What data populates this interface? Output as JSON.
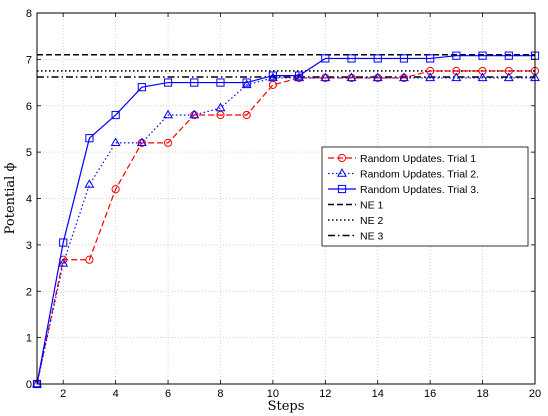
{
  "chart_data": {
    "type": "line",
    "xlabel": "Steps",
    "ylabel": "Potential ϕ",
    "xlim": [
      1,
      20
    ],
    "ylim": [
      0,
      8
    ],
    "xticks": [
      2,
      4,
      6,
      8,
      10,
      12,
      14,
      16,
      18,
      20
    ],
    "yticks": [
      0,
      1,
      2,
      3,
      4,
      5,
      6,
      7,
      8
    ],
    "grid": true,
    "legend_position": "center-right",
    "series": [
      {
        "name": "Random Updates. Trial 1",
        "color": "#ff0000",
        "line": "dashed",
        "marker": "circle",
        "x": [
          1,
          2,
          3,
          4,
          5,
          6,
          7,
          8,
          9,
          10,
          11,
          12,
          13,
          14,
          15,
          16,
          17,
          18,
          19,
          20
        ],
        "y": [
          0,
          2.68,
          2.68,
          4.2,
          5.2,
          5.2,
          5.8,
          5.8,
          5.8,
          6.45,
          6.6,
          6.6,
          6.6,
          6.6,
          6.6,
          6.75,
          6.75,
          6.75,
          6.75,
          6.75
        ]
      },
      {
        "name": "Random Updates. Trial 2.",
        "color": "#0000ff",
        "line": "dotted",
        "marker": "triangle",
        "x": [
          1,
          2,
          3,
          4,
          5,
          6,
          7,
          8,
          9,
          10,
          11,
          12,
          13,
          14,
          15,
          16,
          17,
          18,
          19,
          20
        ],
        "y": [
          0,
          2.6,
          4.3,
          5.2,
          5.2,
          5.8,
          5.8,
          5.95,
          6.45,
          6.6,
          6.6,
          6.6,
          6.6,
          6.6,
          6.6,
          6.6,
          6.6,
          6.6,
          6.6,
          6.6
        ]
      },
      {
        "name": "Random Updates. Trial 3.",
        "color": "#0000ff",
        "line": "solid",
        "marker": "square",
        "x": [
          1,
          2,
          3,
          4,
          5,
          6,
          7,
          8,
          9,
          10,
          11,
          12,
          13,
          14,
          15,
          16,
          17,
          18,
          19,
          20
        ],
        "y": [
          0,
          3.05,
          5.3,
          5.8,
          6.4,
          6.5,
          6.5,
          6.5,
          6.5,
          6.65,
          6.65,
          7.02,
          7.02,
          7.02,
          7.02,
          7.02,
          7.08,
          7.08,
          7.08,
          7.08
        ]
      }
    ],
    "reference_lines": [
      {
        "name": "NE 1",
        "y": 7.1,
        "color": "#000000",
        "line": "dashed"
      },
      {
        "name": "NE 2",
        "y": 6.75,
        "color": "#000000",
        "line": "dotted"
      },
      {
        "name": "NE 3",
        "y": 6.62,
        "color": "#000000",
        "line": "dashdot"
      }
    ]
  }
}
